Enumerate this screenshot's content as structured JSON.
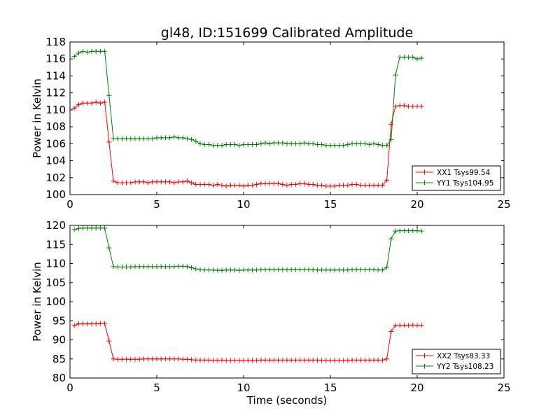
{
  "figure": {
    "title": "gl48, ID:151699 Calibrated Amplitude"
  },
  "chart_data": [
    {
      "type": "line",
      "ylabel": "Power in Kelvin",
      "xlabel": "",
      "xlim": [
        0,
        25
      ],
      "ylim": [
        100,
        118
      ],
      "xticks": [
        "0",
        "5",
        "10",
        "15",
        "20",
        "25"
      ],
      "xtick_values": [
        0,
        5,
        10,
        15,
        20,
        25
      ],
      "yticks": [
        "100",
        "102",
        "104",
        "106",
        "108",
        "110",
        "112",
        "114",
        "116",
        "118"
      ],
      "ytick_values": [
        100,
        102,
        104,
        106,
        108,
        110,
        112,
        114,
        116,
        118
      ],
      "grid": false,
      "legend_position": "lower-right",
      "x": [
        0.25,
        0.5,
        0.75,
        1.0,
        1.25,
        1.5,
        1.75,
        2.0,
        2.25,
        2.5,
        2.75,
        3.0,
        3.25,
        3.5,
        3.75,
        4.0,
        4.25,
        4.5,
        4.75,
        5.0,
        5.25,
        5.5,
        5.75,
        6.0,
        6.25,
        6.5,
        6.75,
        7.0,
        7.25,
        7.5,
        7.75,
        8.0,
        8.25,
        8.5,
        8.75,
        9.0,
        9.25,
        9.5,
        9.75,
        10.0,
        10.25,
        10.5,
        10.75,
        11.0,
        11.25,
        11.5,
        11.75,
        12.0,
        12.25,
        12.5,
        12.75,
        13.0,
        13.25,
        13.5,
        13.75,
        14.0,
        14.25,
        14.5,
        14.75,
        15.0,
        15.25,
        15.5,
        15.75,
        16.0,
        16.25,
        16.5,
        16.75,
        17.0,
        17.25,
        17.5,
        17.75,
        18.0,
        18.25,
        18.5,
        18.75,
        19.0,
        19.25,
        19.5,
        19.75,
        20.0,
        20.25
      ],
      "series": [
        {
          "name": "XX1 Tsys99.54",
          "color": "#ff0000",
          "values": [
            110.2,
            110.6,
            110.8,
            110.8,
            110.8,
            110.9,
            110.8,
            110.9,
            106.2,
            101.6,
            101.4,
            101.4,
            101.4,
            101.4,
            101.5,
            101.5,
            101.5,
            101.4,
            101.5,
            101.5,
            101.5,
            101.5,
            101.5,
            101.4,
            101.5,
            101.5,
            101.6,
            101.4,
            101.2,
            101.2,
            101.2,
            101.2,
            101.1,
            101.2,
            101.1,
            101.0,
            101.1,
            101.1,
            101.1,
            101.0,
            101.1,
            101.1,
            101.2,
            101.3,
            101.3,
            101.3,
            101.3,
            101.3,
            101.2,
            101.1,
            101.2,
            101.2,
            101.3,
            101.3,
            101.2,
            101.2,
            101.1,
            101.1,
            101.0,
            101.0,
            101.0,
            101.1,
            101.1,
            101.1,
            101.2,
            101.2,
            101.1,
            101.1,
            101.1,
            101.1,
            101.1,
            101.1,
            101.7,
            108.3,
            110.4,
            110.5,
            110.5,
            110.4,
            110.4,
            110.4,
            110.4
          ]
        },
        {
          "name": "YY1 Tsys104.95",
          "color": "#008000",
          "values": [
            116.3,
            116.7,
            116.9,
            116.8,
            116.9,
            116.9,
            116.9,
            116.9,
            111.7,
            106.6,
            106.6,
            106.6,
            106.6,
            106.6,
            106.6,
            106.6,
            106.6,
            106.6,
            106.6,
            106.7,
            106.7,
            106.7,
            106.7,
            106.8,
            106.7,
            106.7,
            106.6,
            106.5,
            106.3,
            106.0,
            105.9,
            105.9,
            105.8,
            105.8,
            105.8,
            105.9,
            105.9,
            105.9,
            105.8,
            105.9,
            105.9,
            105.9,
            105.9,
            106.0,
            106.1,
            106.0,
            106.1,
            106.1,
            106.1,
            106.0,
            106.0,
            106.0,
            106.0,
            106.1,
            106.0,
            106.0,
            105.9,
            105.9,
            105.8,
            105.8,
            105.8,
            105.8,
            105.8,
            105.9,
            106.0,
            106.0,
            106.0,
            106.0,
            105.9,
            106.0,
            105.9,
            105.8,
            105.8,
            106.5,
            114.1,
            116.2,
            116.2,
            116.2,
            116.2,
            116.0,
            116.1
          ]
        }
      ]
    },
    {
      "type": "line",
      "ylabel": "Power in Kelvin",
      "xlabel": "Time (seconds)",
      "xlim": [
        0,
        25
      ],
      "ylim": [
        80,
        120
      ],
      "xticks": [
        "0",
        "5",
        "10",
        "15",
        "20",
        "25"
      ],
      "xtick_values": [
        0,
        5,
        10,
        15,
        20,
        25
      ],
      "yticks": [
        "80",
        "85",
        "90",
        "95",
        "100",
        "105",
        "110",
        "115",
        "120"
      ],
      "ytick_values": [
        80,
        85,
        90,
        95,
        100,
        105,
        110,
        115,
        120
      ],
      "grid": false,
      "legend_position": "lower-right",
      "x": [
        0.25,
        0.5,
        0.75,
        1.0,
        1.25,
        1.5,
        1.75,
        2.0,
        2.25,
        2.5,
        2.75,
        3.0,
        3.25,
        3.5,
        3.75,
        4.0,
        4.25,
        4.5,
        4.75,
        5.0,
        5.25,
        5.5,
        5.75,
        6.0,
        6.25,
        6.5,
        6.75,
        7.0,
        7.25,
        7.5,
        7.75,
        8.0,
        8.25,
        8.5,
        8.75,
        9.0,
        9.25,
        9.5,
        9.75,
        10.0,
        10.25,
        10.5,
        10.75,
        11.0,
        11.25,
        11.5,
        11.75,
        12.0,
        12.25,
        12.5,
        12.75,
        13.0,
        13.25,
        13.5,
        13.75,
        14.0,
        14.25,
        14.5,
        14.75,
        15.0,
        15.25,
        15.5,
        15.75,
        16.0,
        16.25,
        16.5,
        16.75,
        17.0,
        17.25,
        17.5,
        17.75,
        18.0,
        18.25,
        18.5,
        18.75,
        19.0,
        19.25,
        19.5,
        19.75,
        20.0,
        20.25
      ],
      "series": [
        {
          "name": "XX2 Tsys83.33",
          "color": "#ff0000",
          "values": [
            93.8,
            94.2,
            94.2,
            94.2,
            94.2,
            94.2,
            94.3,
            94.3,
            89.7,
            85.0,
            84.9,
            84.9,
            84.9,
            84.9,
            84.9,
            84.9,
            85.0,
            85.0,
            85.0,
            85.0,
            85.0,
            85.0,
            85.0,
            85.0,
            85.0,
            84.9,
            84.9,
            84.8,
            84.7,
            84.7,
            84.7,
            84.7,
            84.6,
            84.6,
            84.7,
            84.6,
            84.6,
            84.6,
            84.6,
            84.6,
            84.6,
            84.6,
            84.6,
            84.7,
            84.7,
            84.7,
            84.7,
            84.7,
            84.7,
            84.7,
            84.7,
            84.7,
            84.7,
            84.7,
            84.7,
            84.7,
            84.7,
            84.6,
            84.6,
            84.6,
            84.6,
            84.6,
            84.6,
            84.6,
            84.7,
            84.7,
            84.7,
            84.7,
            84.7,
            84.7,
            84.7,
            84.7,
            85.0,
            92.2,
            93.8,
            93.8,
            93.8,
            93.8,
            93.9,
            93.8,
            93.8
          ]
        },
        {
          "name": "YY2 Tsys108.23",
          "color": "#008000",
          "values": [
            118.9,
            119.2,
            119.3,
            119.3,
            119.3,
            119.3,
            119.3,
            119.3,
            114.1,
            109.2,
            109.1,
            109.1,
            109.1,
            109.1,
            109.2,
            109.2,
            109.2,
            109.2,
            109.2,
            109.2,
            109.2,
            109.2,
            109.2,
            109.2,
            109.3,
            109.3,
            109.2,
            108.9,
            108.6,
            108.4,
            108.3,
            108.3,
            108.3,
            108.2,
            108.2,
            108.3,
            108.3,
            108.3,
            108.2,
            108.3,
            108.3,
            108.3,
            108.3,
            108.4,
            108.4,
            108.4,
            108.4,
            108.4,
            108.4,
            108.4,
            108.4,
            108.4,
            108.4,
            108.4,
            108.4,
            108.4,
            108.3,
            108.3,
            108.3,
            108.3,
            108.3,
            108.3,
            108.3,
            108.3,
            108.4,
            108.4,
            108.4,
            108.4,
            108.4,
            108.4,
            108.3,
            108.3,
            109.0,
            116.5,
            118.5,
            118.6,
            118.6,
            118.6,
            118.6,
            118.6,
            118.5
          ]
        }
      ]
    }
  ]
}
